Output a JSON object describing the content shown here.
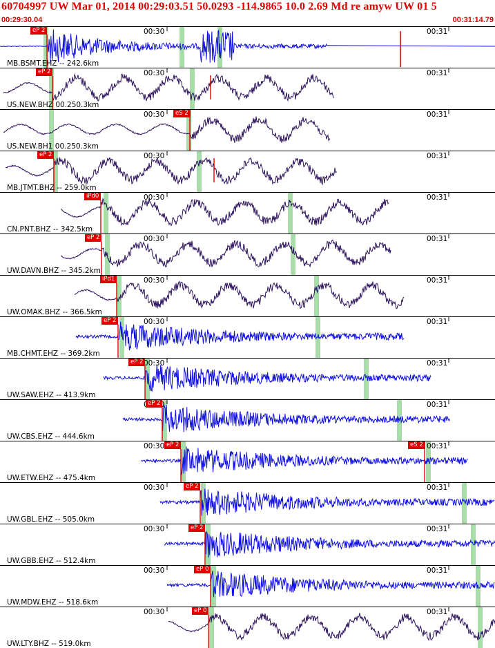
{
  "header": {
    "title": "60704997 UW Mar 01, 2014 00:29:03.51    50.0293 -114.9865 10.0 2.69 Md re amyw UW 01    5",
    "start_time": "00:29:30.04",
    "end_time": "00:31:14.79"
  },
  "time_marks": {
    "first": "00:30",
    "second": "00:31"
  },
  "colors": {
    "accent": "#e00000",
    "trace_broadband": "#2a0f5c",
    "trace_short_period": "#1010e0",
    "window": "#a8dca8"
  },
  "traces": [
    {
      "label": "MB.BSMT.EHZ -- 242.6km",
      "pick": "eP 2",
      "color": "short",
      "style": "burst"
    },
    {
      "label": "US.NEW.BHZ 00.250.3km",
      "pick": "eP 2",
      "color": "broad",
      "style": "wave"
    },
    {
      "label": "US.NEW.BH1 00.250.3km",
      "pick": "eS 2",
      "color": "broad",
      "style": "wave"
    },
    {
      "label": "MB.JTMT.BHZ -- 259.0km",
      "pick": "eP 2",
      "color": "broad",
      "style": "wave"
    },
    {
      "label": "CN.PNT.BHZ -- 342.5km",
      "pick": "iPd0",
      "color": "broad",
      "style": "wave"
    },
    {
      "label": "UW.DAVN.BHZ -- 345.2km",
      "pick": "eP 2",
      "color": "broad",
      "style": "wave"
    },
    {
      "label": "UW.OMAK.BHZ -- 366.5km",
      "pick": "iPd1",
      "color": "broad",
      "style": "wave"
    },
    {
      "label": "MB.CHMT.EHZ -- 369.2km",
      "pick": "eP 2",
      "color": "short",
      "style": "noise"
    },
    {
      "label": "UW.SAW.EHZ -- 413.9km",
      "pick": "eP 2",
      "color": "short",
      "style": "noise"
    },
    {
      "label": "UW.CBS.EHZ -- 444.6km",
      "pick": "eP 2",
      "color": "short",
      "style": "noise"
    },
    {
      "label": "UW.ETW.EHZ -- 475.4km",
      "pick": "eP 2",
      "pick2": "eS 2",
      "color": "short",
      "style": "noise"
    },
    {
      "label": "UW.GBL.EHZ -- 505.0km",
      "pick": "eP 2",
      "color": "short",
      "style": "noise"
    },
    {
      "label": "UW.GBB.EHZ -- 512.4km",
      "pick": "eP 2",
      "color": "short",
      "style": "noise"
    },
    {
      "label": "UW.MDW.EHZ -- 518.6km",
      "pick": "eP 0",
      "color": "short",
      "style": "noise"
    },
    {
      "label": "UW.LTY.BHZ -- 519.0km",
      "pick": "eP 0",
      "color": "broad",
      "style": "wave"
    }
  ]
}
